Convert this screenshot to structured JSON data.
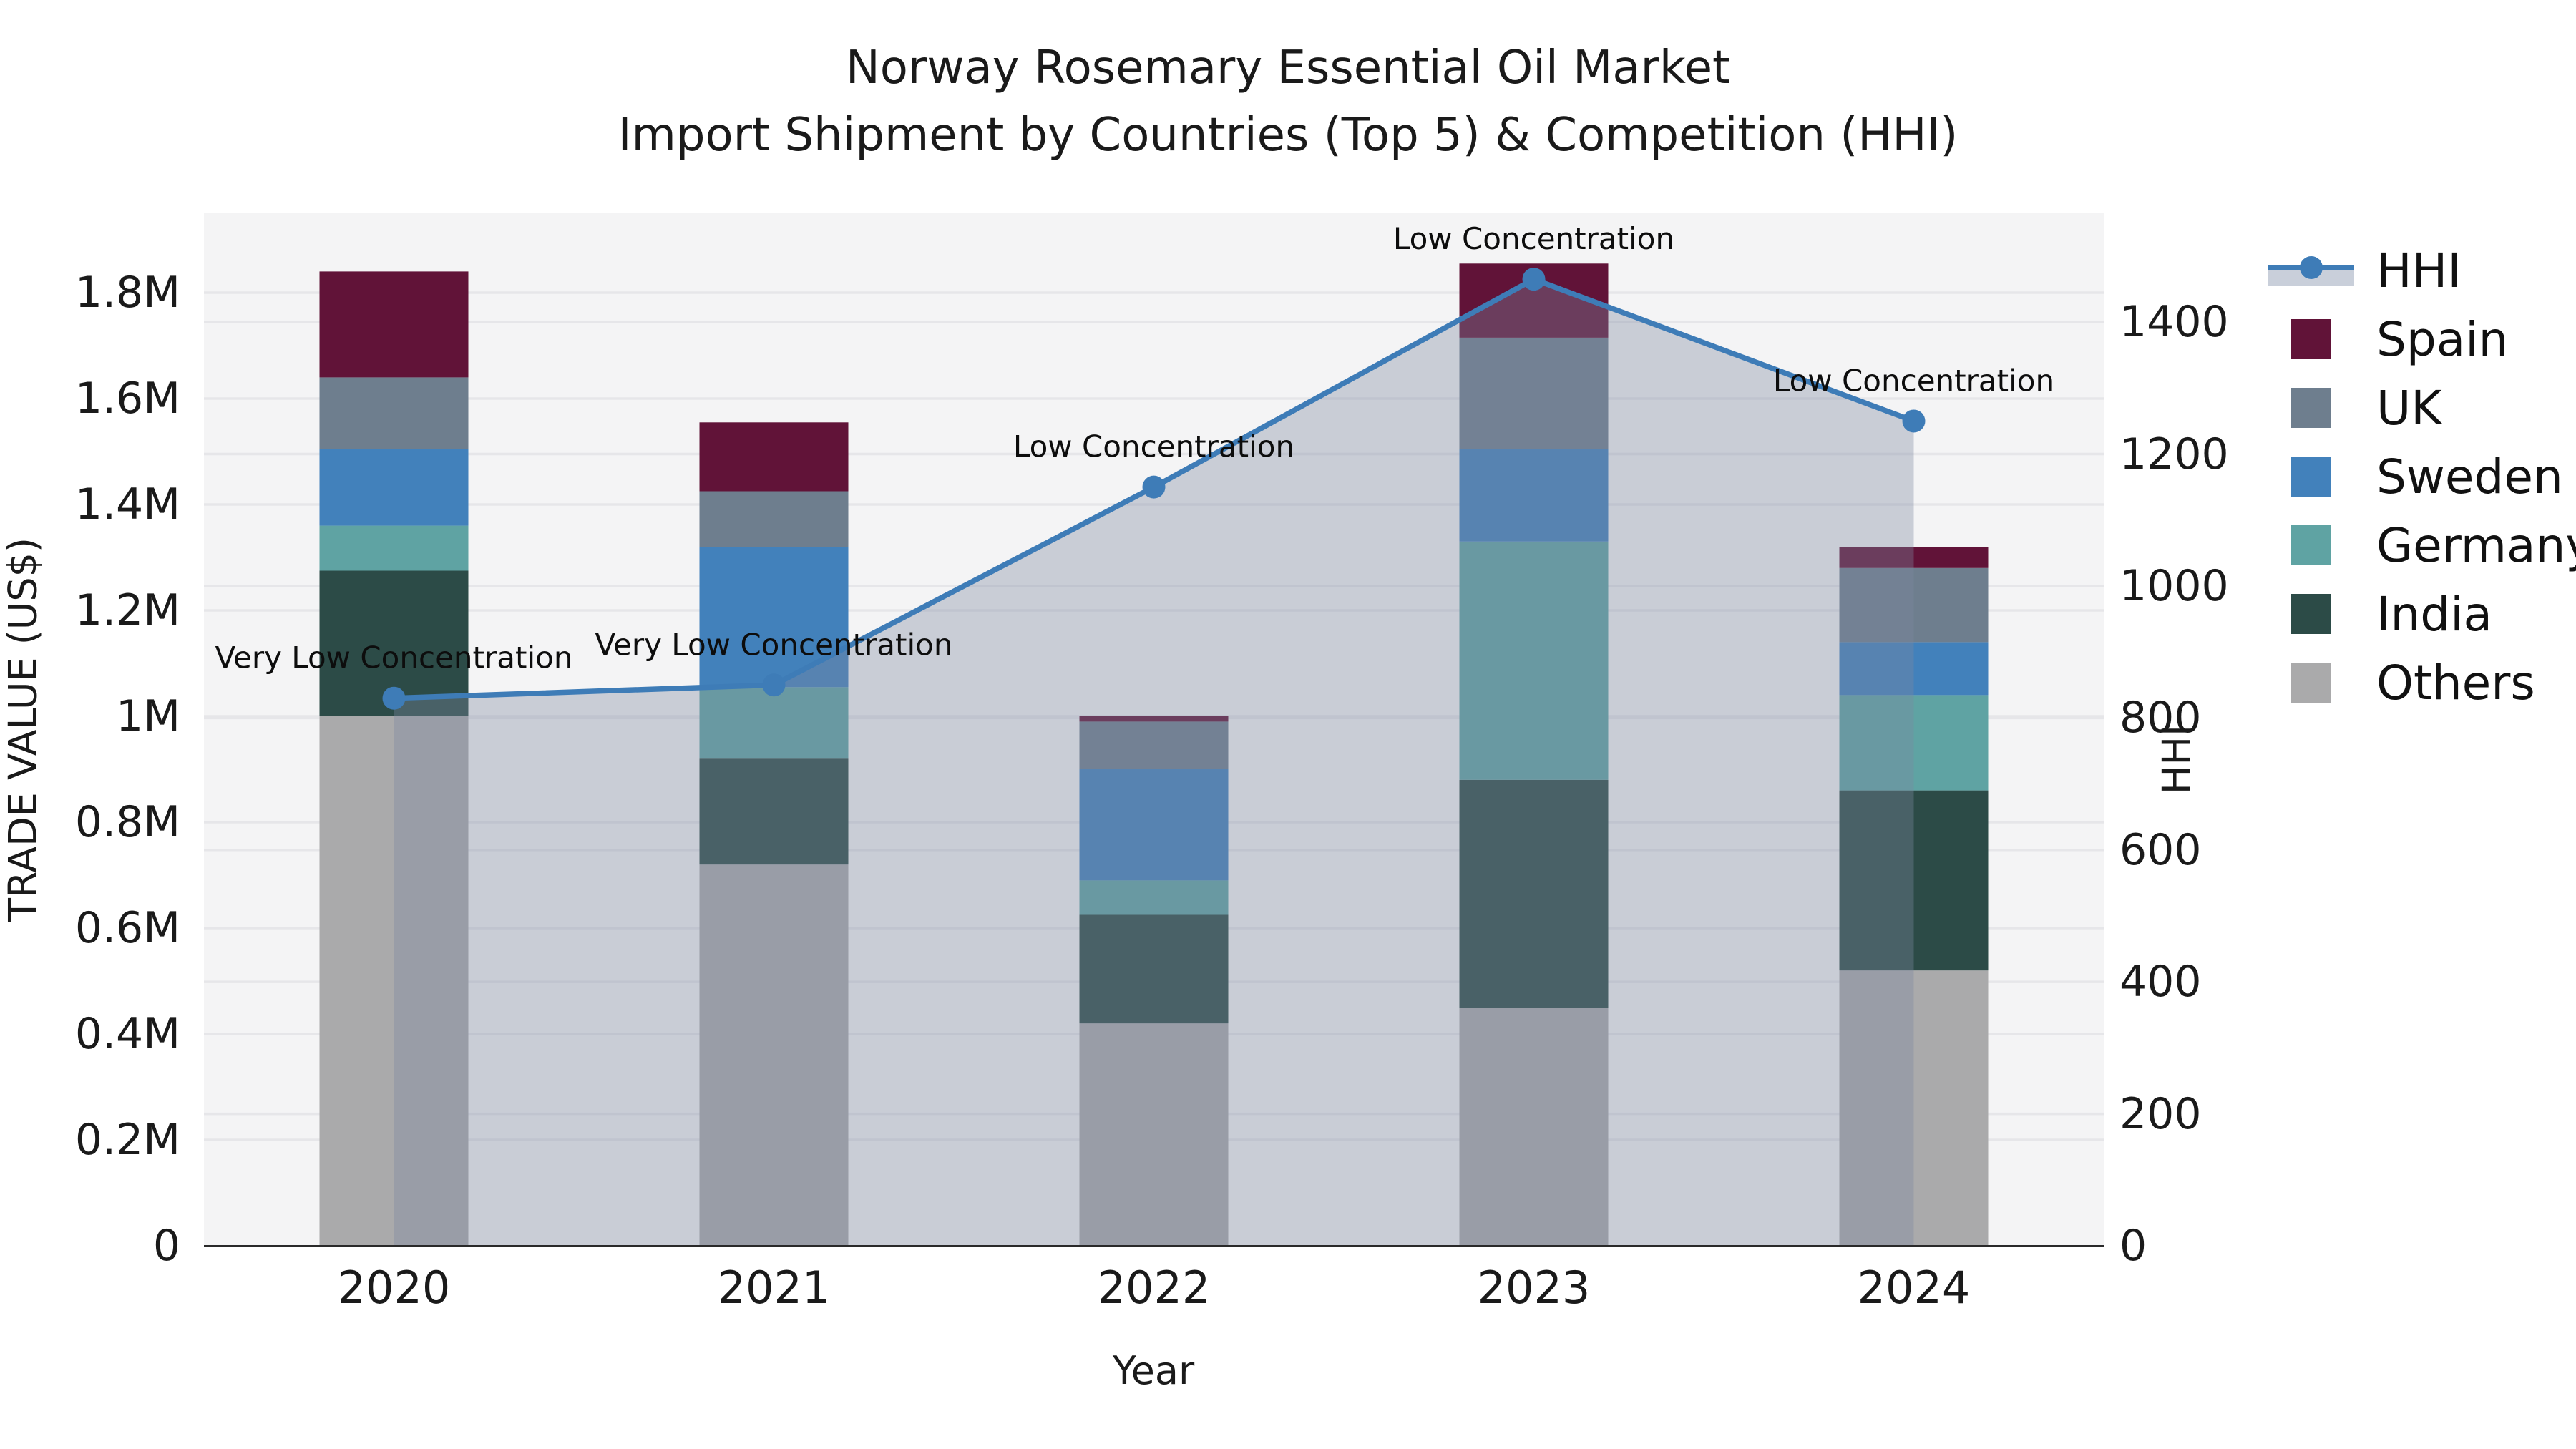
{
  "title": {
    "line1": "Norway Rosemary Essential Oil Market",
    "line2": "Import Shipment by Countries (Top 5) & Competition (HHI)"
  },
  "axes": {
    "x_title": "Year",
    "left_title": "TRADE VALUE (US$)",
    "right_title": "HHI",
    "left_ticks": [
      {
        "label": "0",
        "value": 0
      },
      {
        "label": "0.2M",
        "value": 0.2
      },
      {
        "label": "0.4M",
        "value": 0.4
      },
      {
        "label": "0.6M",
        "value": 0.6
      },
      {
        "label": "0.8M",
        "value": 0.8
      },
      {
        "label": "1M",
        "value": 1.0
      },
      {
        "label": "1.2M",
        "value": 1.2
      },
      {
        "label": "1.4M",
        "value": 1.4
      },
      {
        "label": "1.6M",
        "value": 1.6
      },
      {
        "label": "1.8M",
        "value": 1.8
      }
    ],
    "right_ticks": [
      {
        "label": "0",
        "value": 0
      },
      {
        "label": "200",
        "value": 200
      },
      {
        "label": "400",
        "value": 400
      },
      {
        "label": "600",
        "value": 600
      },
      {
        "label": "800",
        "value": 800
      },
      {
        "label": "1000",
        "value": 1000
      },
      {
        "label": "1200",
        "value": 1200
      },
      {
        "label": "1400",
        "value": 1400
      }
    ]
  },
  "legend": {
    "items": [
      {
        "label": "HHI",
        "kind": "line-area",
        "line_color": "#3e7cb7",
        "band_color": "#c9cfda"
      },
      {
        "label": "Spain",
        "kind": "swatch",
        "color": "#611338"
      },
      {
        "label": "UK",
        "kind": "swatch",
        "color": "#6e7e8e"
      },
      {
        "label": "Sweden",
        "kind": "swatch",
        "color": "#4281bb"
      },
      {
        "label": "Germany",
        "kind": "swatch",
        "color": "#5fa3a3"
      },
      {
        "label": "India",
        "kind": "swatch",
        "color": "#2c4b47"
      },
      {
        "label": "Others",
        "kind": "swatch",
        "color": "#aaaaab"
      }
    ]
  },
  "chart_data": {
    "type": "bar",
    "subtype": "stacked-bars-with-line-area-overlay",
    "categories": [
      "2020",
      "2021",
      "2022",
      "2023",
      "2024"
    ],
    "bar_unit": "million US$ (trade value, left axis)",
    "series": [
      {
        "name": "Others",
        "color": "#aaaaab",
        "values": [
          1.0,
          0.72,
          0.42,
          0.45,
          0.52
        ]
      },
      {
        "name": "India",
        "color": "#2c4b47",
        "values": [
          0.275,
          0.2,
          0.205,
          0.43,
          0.34
        ]
      },
      {
        "name": "Germany",
        "color": "#5fa3a3",
        "values": [
          0.085,
          0.135,
          0.065,
          0.45,
          0.18
        ]
      },
      {
        "name": "Sweden",
        "color": "#4281bb",
        "values": [
          0.145,
          0.265,
          0.21,
          0.175,
          0.1
        ]
      },
      {
        "name": "UK",
        "color": "#6e7e8e",
        "values": [
          0.135,
          0.105,
          0.09,
          0.21,
          0.14
        ]
      },
      {
        "name": "Spain",
        "color": "#611338",
        "values": [
          0.2,
          0.13,
          0.01,
          0.14,
          0.04
        ]
      }
    ],
    "stack_order_note": "series listed bottom-to-top; totals ≈ 1.84M, 1.555M, 1.00M, 1.855M, 1.32M",
    "line_series": {
      "name": "HHI",
      "axis": "right",
      "color": "#3e7cb7",
      "area_fill": "rgba(124,136,161,0.36)",
      "values": [
        830,
        850,
        1150,
        1465,
        1250
      ]
    },
    "annotations": [
      {
        "x": "2020",
        "text": "Very Low Concentration"
      },
      {
        "x": "2021",
        "text": "Very Low Concentration"
      },
      {
        "x": "2022",
        "text": "Low Concentration"
      },
      {
        "x": "2023",
        "text": "Low Concentration"
      },
      {
        "x": "2024",
        "text": "Low Concentration"
      }
    ],
    "title": "Norway Rosemary Essential Oil Market — Import Shipment by Countries (Top 5) & Competition (HHI)",
    "xlabel": "Year",
    "ylabel_left": "TRADE VALUE (US$)",
    "ylabel_right": "HHI",
    "left_axis_range_musd": [
      0,
      1.95
    ],
    "right_axis_range": [
      0,
      1565
    ],
    "grid": "horizontal, both axes tick levels",
    "legend_position": "right-outside-top"
  },
  "style": {
    "plot_bg": "#f4f4f5",
    "grid_color": "#e6e6e9",
    "axis_line_color": "#2a2a2a",
    "annotation_color": "#0d0d0d"
  }
}
